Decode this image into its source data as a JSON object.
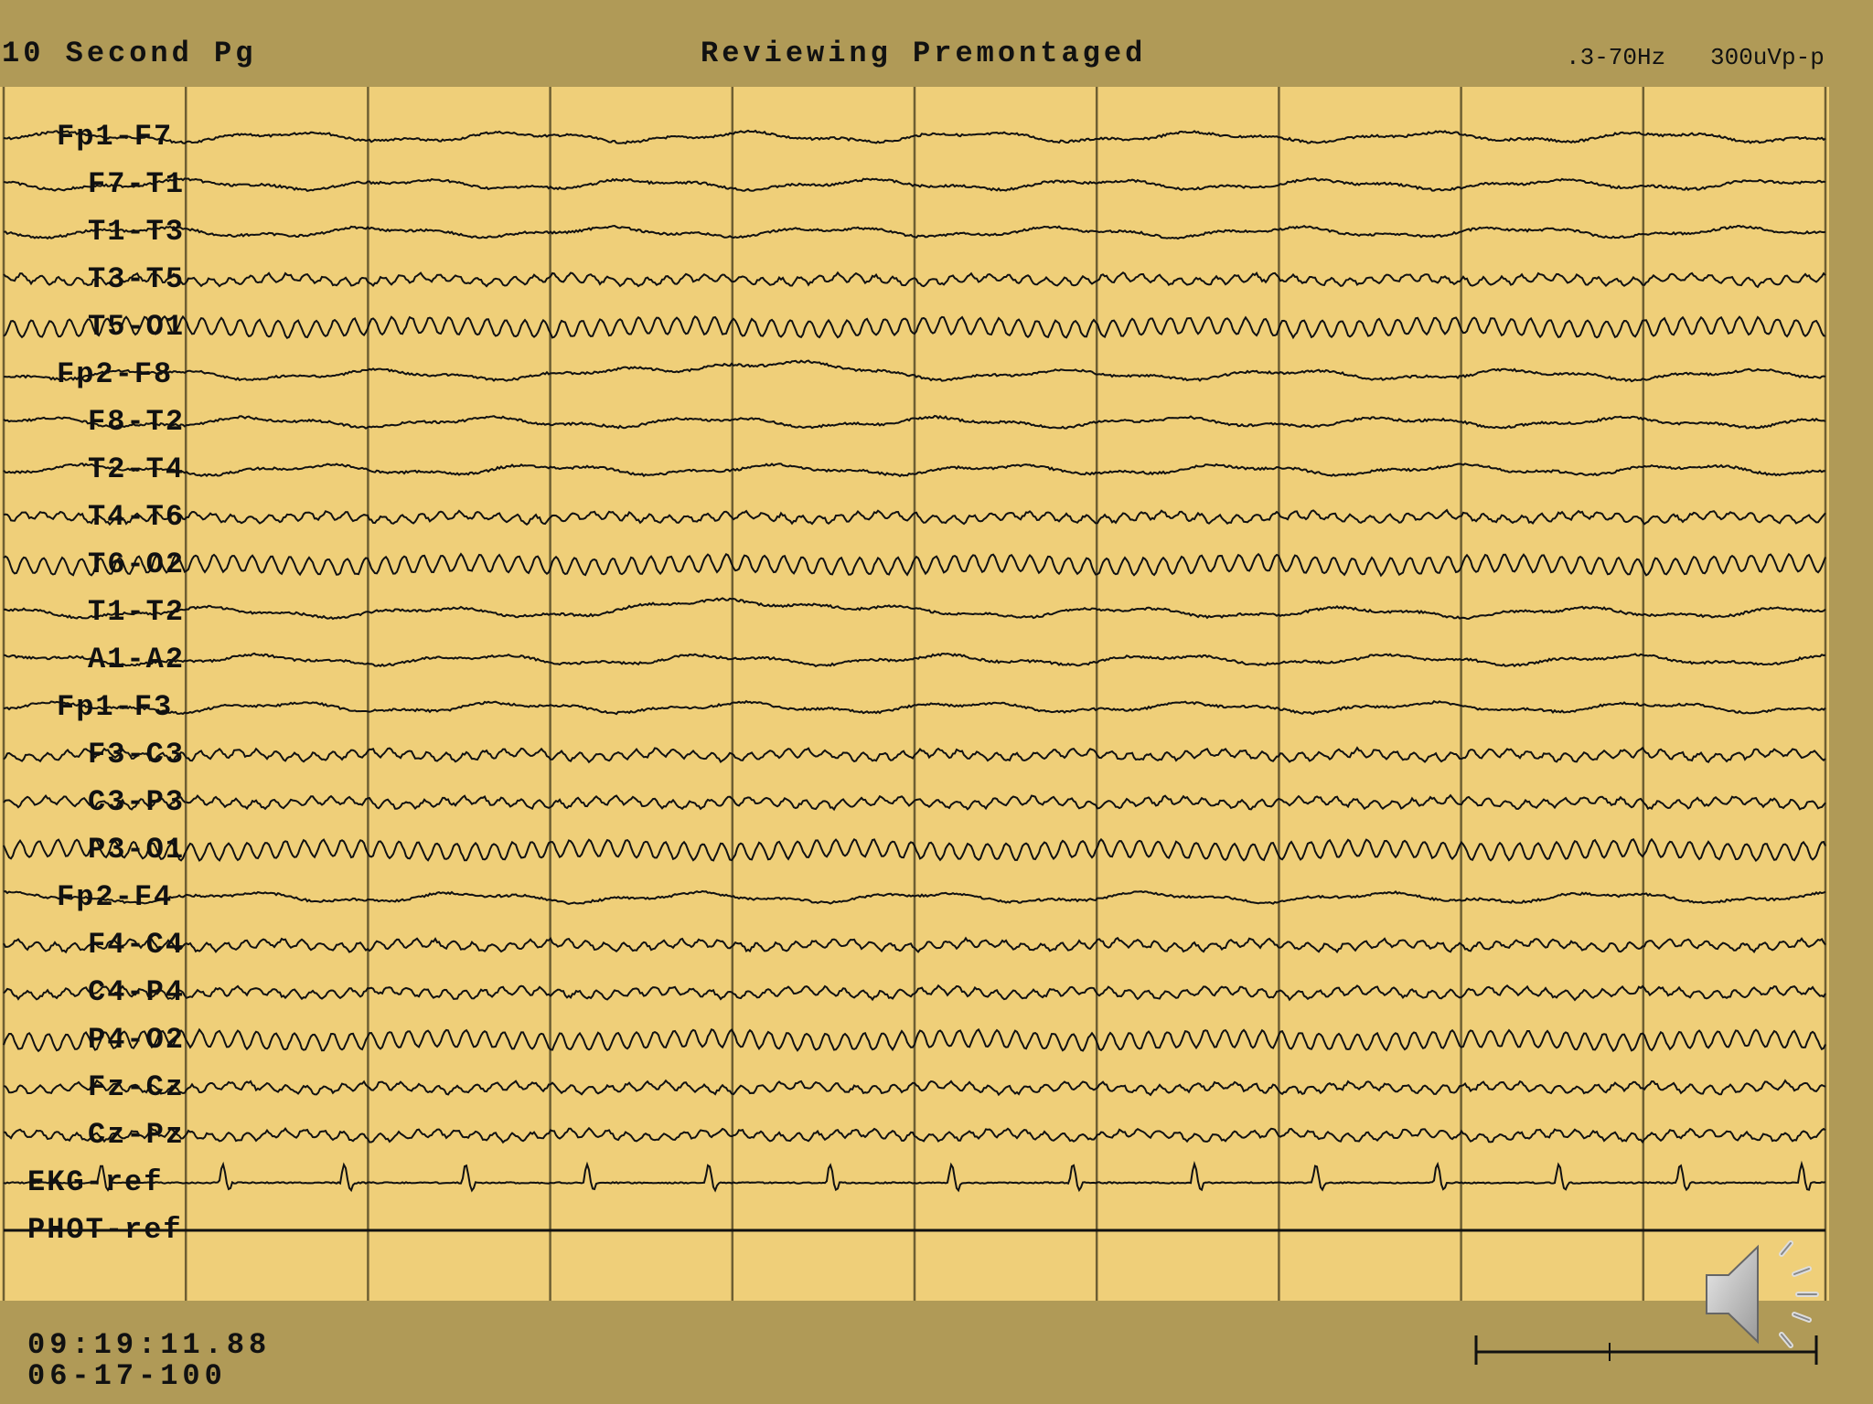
{
  "header": {
    "page_mode": "10 Second Pg",
    "status": "Reviewing Premontaged",
    "filter": ".3-70Hz",
    "sensitivity": "300uVp-p"
  },
  "footer": {
    "time": "09:19:11.88",
    "date": "06-17-100"
  },
  "montage": {
    "channels": [
      {
        "label": "Fp1-F7",
        "rhythm": "slow"
      },
      {
        "label": "F7-T1",
        "rhythm": "slow"
      },
      {
        "label": "T1-T3",
        "rhythm": "slow"
      },
      {
        "label": "T3-T5",
        "rhythm": "mixed"
      },
      {
        "label": "T5-O1",
        "rhythm": "alpha"
      },
      {
        "label": "Fp2-F8",
        "rhythm": "slow"
      },
      {
        "label": "F8-T2",
        "rhythm": "slow"
      },
      {
        "label": "T2-T4",
        "rhythm": "slow"
      },
      {
        "label": "T4-T6",
        "rhythm": "mixed"
      },
      {
        "label": "T6-O2",
        "rhythm": "alpha"
      },
      {
        "label": "T1-T2",
        "rhythm": "slow"
      },
      {
        "label": "A1-A2",
        "rhythm": "slow"
      },
      {
        "label": "Fp1-F3",
        "rhythm": "slow"
      },
      {
        "label": "F3-C3",
        "rhythm": "mixed"
      },
      {
        "label": "C3-P3",
        "rhythm": "mixed"
      },
      {
        "label": "P3-O1",
        "rhythm": "alpha"
      },
      {
        "label": "Fp2-F4",
        "rhythm": "slow"
      },
      {
        "label": "F4-C4",
        "rhythm": "mixed"
      },
      {
        "label": "C4-P4",
        "rhythm": "mixed"
      },
      {
        "label": "P4-O2",
        "rhythm": "alpha"
      },
      {
        "label": "Fz-Cz",
        "rhythm": "mixed"
      },
      {
        "label": "Cz-Pz",
        "rhythm": "mixed"
      },
      {
        "label": "EKG-ref",
        "rhythm": "ekg"
      },
      {
        "label": "PHOT-ref",
        "rhythm": "flat"
      }
    ],
    "seconds_per_page": 10,
    "ekg_beats": 15
  },
  "colors": {
    "background": "#b09a57",
    "panel": "#efcf79",
    "trace": "#111111",
    "gridline": "#6e5f33"
  },
  "icons": {
    "speaker": "speaker-icon",
    "scale_bar": "calibration-scale-bar"
  }
}
